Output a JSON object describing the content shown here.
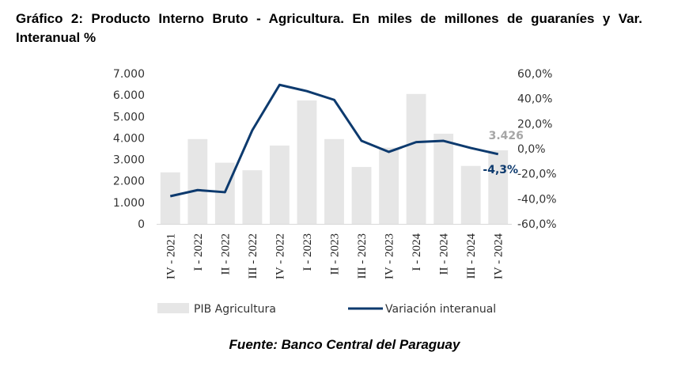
{
  "title": "Gráfico 2: Producto Interno Bruto - Agricultura. En miles de millones de guaraníes y Var. Interanual %",
  "source": "Fuente: Banco Central del Paraguay",
  "chart_data": {
    "type": "bar+line",
    "categories": [
      "IV - 2021",
      "I - 2022",
      "II - 2022",
      "III - 2022",
      "IV - 2022",
      "I - 2023",
      "II - 2023",
      "III - 2023",
      "IV - 2023",
      "I - 2024",
      "II - 2024",
      "III - 2024",
      "IV - 2024"
    ],
    "series": [
      {
        "name": "PIB Agricultura",
        "type": "bar",
        "axis": "left",
        "color": "#e6e6e6",
        "values": [
          2400,
          3950,
          2850,
          2500,
          3650,
          5750,
          3950,
          2650,
          3550,
          6050,
          4200,
          2700,
          3426
        ]
      },
      {
        "name": "Variación interanual",
        "type": "line",
        "axis": "right",
        "color": "#0d3a6e",
        "values": [
          -37.9,
          -33.0,
          -34.7,
          14.7,
          51.0,
          46.0,
          39.0,
          6.3,
          -2.5,
          5.3,
          6.3,
          0.6,
          -4.3
        ]
      }
    ],
    "left_ticks": [
      "0",
      "1.000",
      "2.000",
      "3.000",
      "4.000",
      "5.000",
      "6.000",
      "7.000"
    ],
    "right_ticks": [
      "-60,0%",
      "-40,0%",
      "-20,0%",
      "0,0%",
      "20,0%",
      "40,0%",
      "60,0%"
    ],
    "ylim_left": [
      0,
      7000
    ],
    "ylim_right": [
      -60,
      60
    ],
    "annotations": {
      "bar_last": "3.426",
      "line_last": "-4,3%"
    },
    "legend": "bottom"
  }
}
